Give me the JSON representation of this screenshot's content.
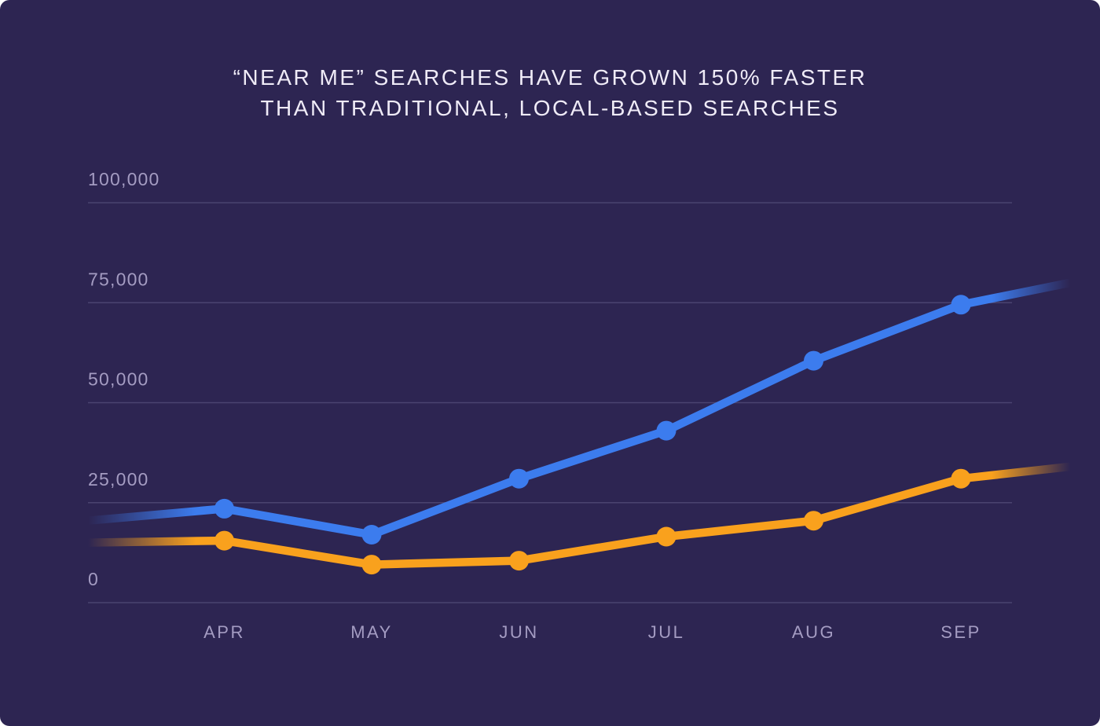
{
  "title": {
    "line1": "“NEAR ME” SEARCHES HAVE GROWN 150% FASTER",
    "line2": "THAN TRADITIONAL, LOCAL-BASED SEARCHES"
  },
  "colors": {
    "page_background": "#FFFFFF",
    "card_background": "#2D2552",
    "grid_line": "#4A4470",
    "tick_label": "#A49CC2",
    "title_text": "#EFEBF7",
    "near_me_line": "#3C7CEE",
    "traditional_line": "#F9A11D"
  },
  "chart_data": {
    "type": "line",
    "title": "“NEAR ME” SEARCHES HAVE GROWN 150% FASTER THAN TRADITIONAL, LOCAL-BASED SEARCHES",
    "categories": [
      "APR",
      "MAY",
      "JUN",
      "JUL",
      "AUG",
      "SEP"
    ],
    "series": [
      {
        "name": "near-me-searches",
        "color": "#3C7CEE",
        "values": [
          23500,
          17000,
          31000,
          43000,
          60500,
          74500
        ],
        "edge_start_value": 20500,
        "edge_end_value": 80000
      },
      {
        "name": "traditional-local-searches",
        "color": "#F9A11D",
        "values": [
          15500,
          9500,
          10500,
          16500,
          20500,
          31000
        ],
        "edge_start_value": 15000,
        "edge_end_value": 34000
      }
    ],
    "yticks": [
      {
        "value": 0,
        "label": "0"
      },
      {
        "value": 25000,
        "label": "25,000"
      },
      {
        "value": 50000,
        "label": "50,000"
      },
      {
        "value": 75000,
        "label": "75,000"
      },
      {
        "value": 100000,
        "label": "100,000"
      }
    ],
    "ylim": [
      0,
      100000
    ],
    "grid": "horizontal",
    "legend": "none",
    "line_fade": "both-edges"
  }
}
